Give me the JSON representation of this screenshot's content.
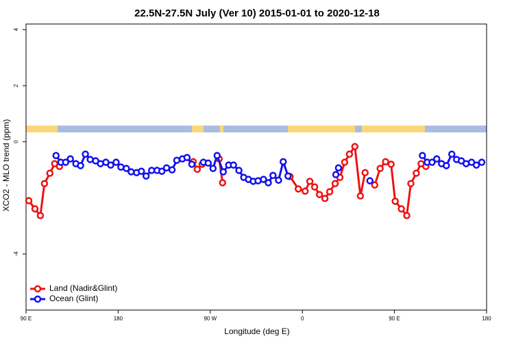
{
  "chart_data": {
    "type": "line",
    "title": "22.5N-27.5N July (Ver 10)   2015-01-01 to 2020-12-18",
    "x_label": "Longitude (deg E)",
    "y_label": "XCO2 - MLO trend (ppm)",
    "xlim": [
      90,
      540
    ],
    "ylim": [
      -6,
      4.2
    ],
    "xticks": [
      {
        "value": 90,
        "label": "90 E"
      },
      {
        "value": 180,
        "label": "180"
      },
      {
        "value": 270,
        "label": "90 W"
      },
      {
        "value": 360,
        "label": "0"
      },
      {
        "value": 450,
        "label": "90 E"
      },
      {
        "value": 540,
        "label": "180"
      }
    ],
    "yticks": [
      -4,
      0,
      2,
      4
    ],
    "legend": "bottom-left",
    "series": [
      {
        "name": "Land (Nadir&Glint)",
        "color": "#ee1111",
        "x": [
          92.7,
          98.7,
          104,
          108,
          113.3,
          118,
          122.7,
          null,
          253.3,
          257.3,
          262,
          null,
          278.7,
          282,
          null,
          348,
          356,
          362.7,
          367.3,
          372,
          376.7,
          382,
          386.7,
          392,
          396.7,
          401.3,
          406,
          411.3,
          416.7,
          421.3,
          null,
          430.7,
          436,
          441.3,
          446.7,
          450.7,
          456.7,
          462,
          466,
          471.3,
          476,
          480.7
        ],
        "values": [
          -2.1,
          -2.39,
          -2.63,
          -1.49,
          -1.12,
          -0.78,
          -0.88,
          null,
          -0.71,
          -0.98,
          -0.8,
          null,
          -0.61,
          -1.46,
          null,
          -1.24,
          -1.68,
          -1.76,
          -1.41,
          -1.61,
          -1.88,
          -2.02,
          -1.78,
          -1.49,
          -1.27,
          -0.73,
          -0.44,
          -0.17,
          -1.93,
          -1.1,
          null,
          -1.54,
          -0.95,
          -0.71,
          -0.8,
          -2.12,
          -2.39,
          -2.63,
          -1.49,
          -1.12,
          -0.78,
          -0.88
        ]
      },
      {
        "name": "Ocean (Glint)",
        "color": "#1111ee",
        "x": [
          119.3,
          124,
          128.7,
          133.3,
          138.7,
          143.3,
          148,
          152.7,
          158,
          162.7,
          168,
          172.7,
          178,
          182.7,
          188,
          192.7,
          198,
          202.7,
          207.3,
          212.7,
          218,
          222.7,
          227.3,
          232.7,
          237.3,
          242.7,
          247.3,
          252,
          null,
          263.3,
          268,
          272.7,
          276.7,
          282.7,
          288,
          292.7,
          298,
          302.7,
          307.3,
          312,
          316.7,
          322,
          326.7,
          331.3,
          336.7,
          341.3,
          346,
          null,
          392.7,
          395.3,
          null,
          426,
          null,
          477.3,
          482,
          486.7,
          491.3,
          496,
          500.7,
          506,
          510.7,
          515.3,
          520,
          525.3,
          530,
          535.3
        ],
        "values": [
          -0.49,
          -0.73,
          -0.73,
          -0.61,
          -0.78,
          -0.85,
          -0.44,
          -0.63,
          -0.68,
          -0.78,
          -0.73,
          -0.83,
          -0.73,
          -0.9,
          -0.95,
          -1.07,
          -1.1,
          -1.05,
          -1.22,
          -1.02,
          -1.02,
          -1.05,
          -0.93,
          -1.0,
          -0.66,
          -0.61,
          -0.56,
          -0.8,
          null,
          -0.73,
          -0.76,
          -0.95,
          -0.49,
          -1.07,
          -0.83,
          -0.83,
          -1.02,
          -1.27,
          -1.34,
          -1.41,
          -1.39,
          -1.34,
          -1.46,
          -1.2,
          -1.37,
          -0.71,
          -1.22,
          null,
          -1.17,
          -0.93,
          null,
          -1.39,
          null,
          -0.49,
          -0.73,
          -0.73,
          -0.61,
          -0.78,
          -0.85,
          -0.44,
          -0.63,
          -0.68,
          -0.78,
          -0.73,
          -0.83,
          -0.73
        ]
      }
    ]
  }
}
